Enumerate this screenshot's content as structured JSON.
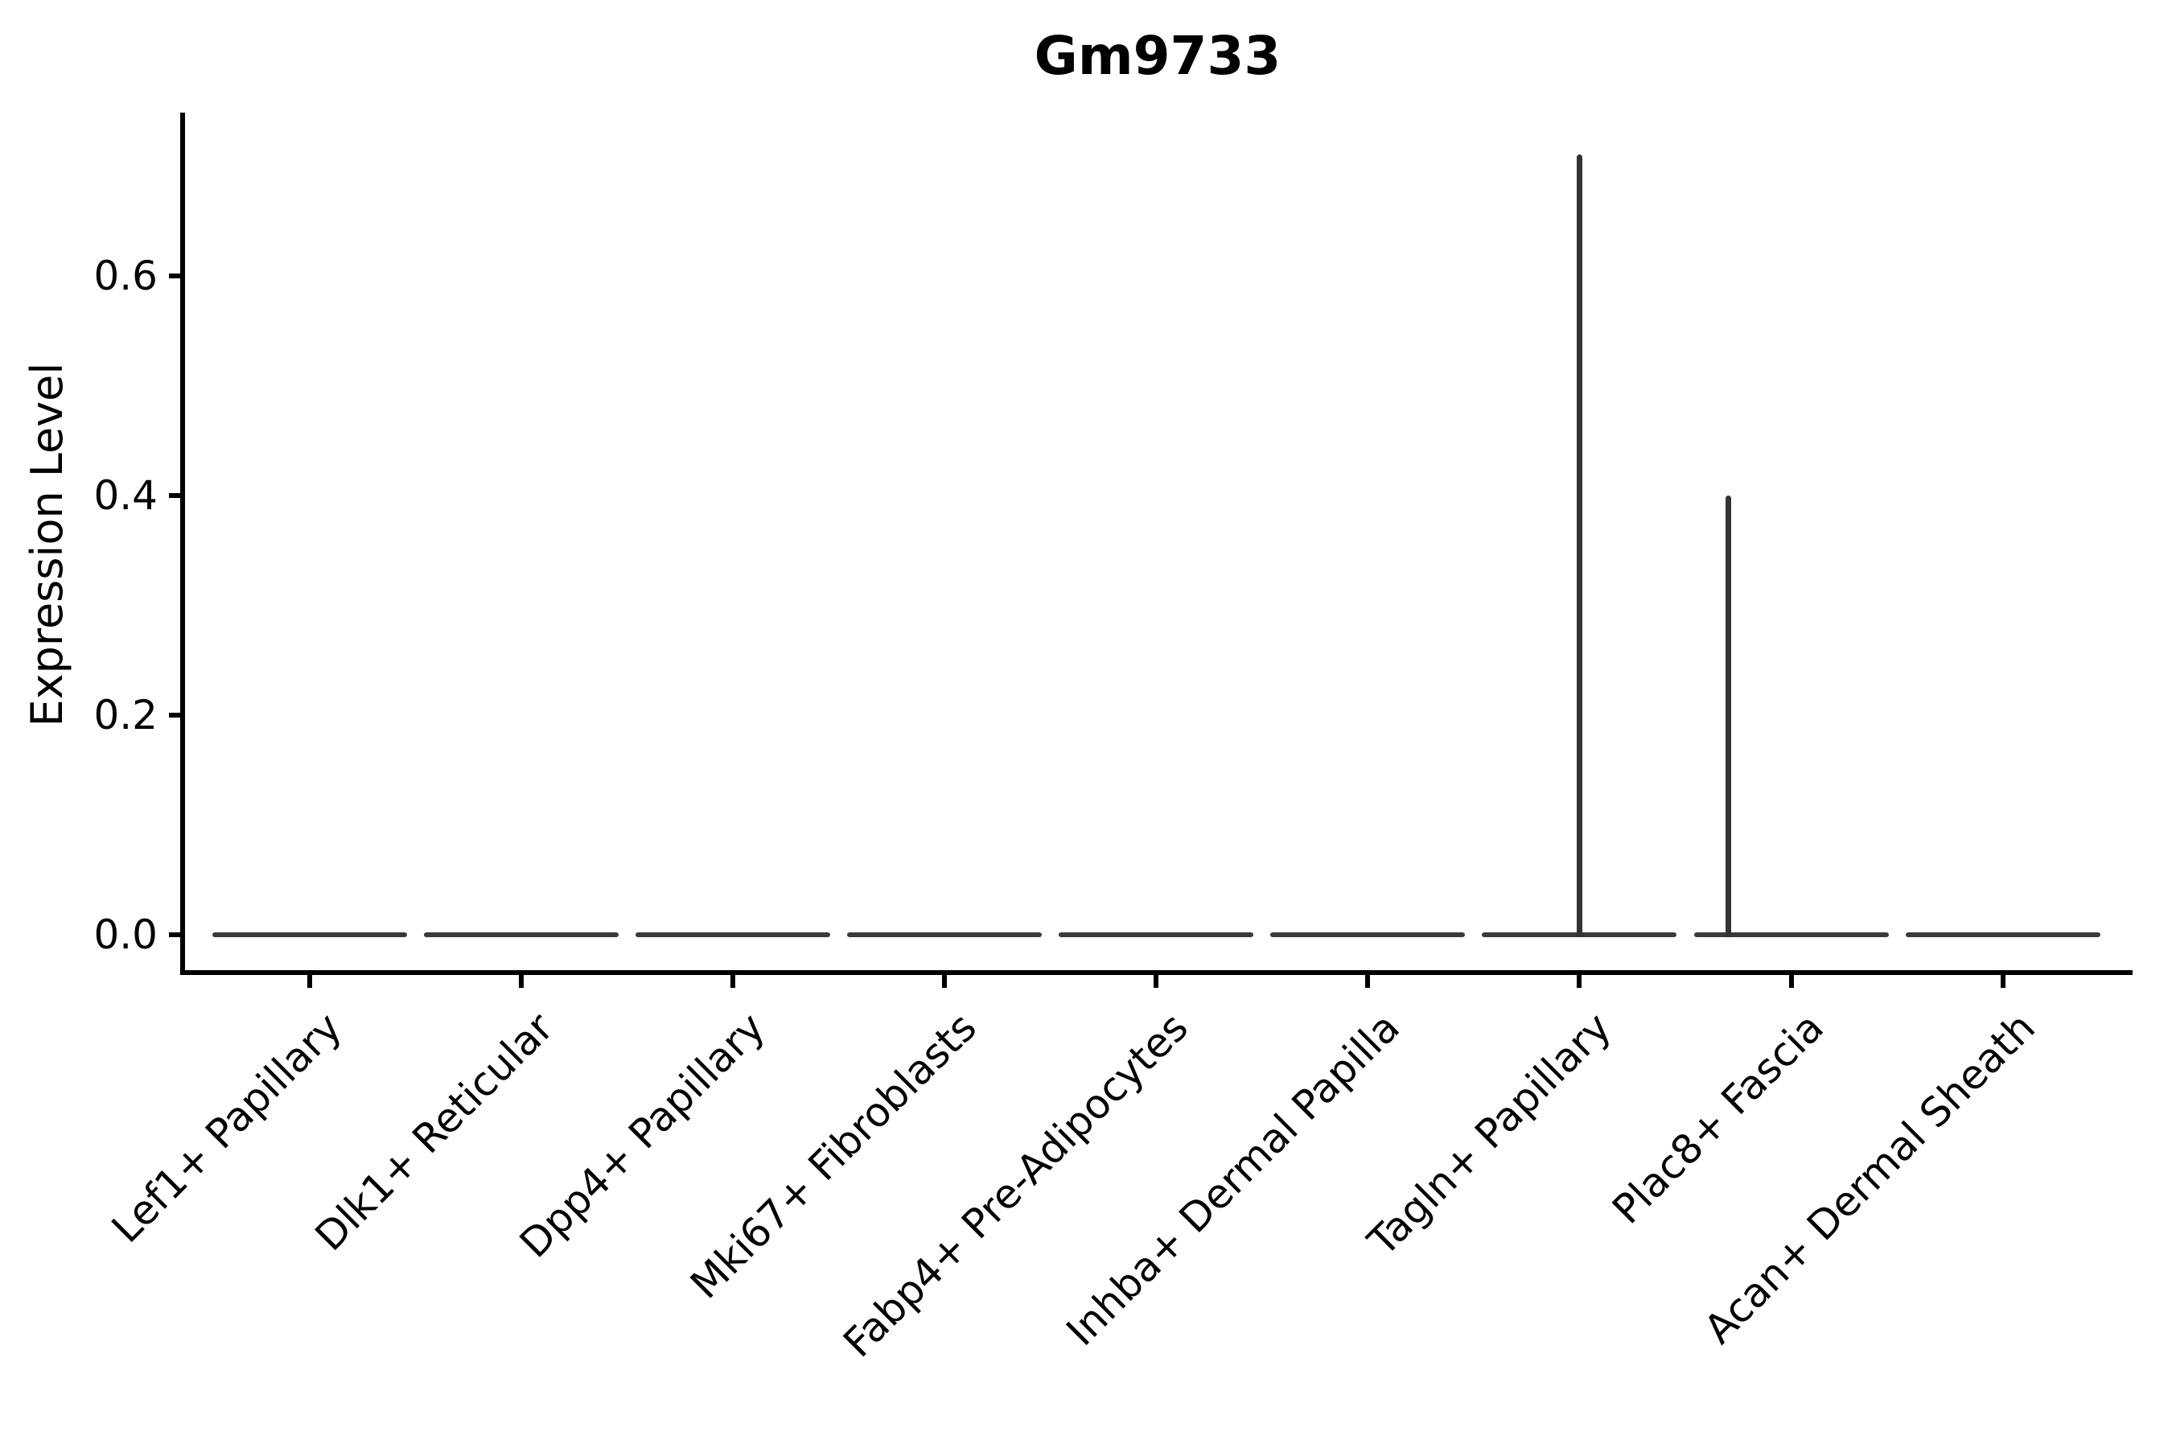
{
  "chart_data": {
    "type": "violin",
    "title": "Gm9733",
    "ylabel": "Expression Level",
    "xlabel": "",
    "ytick_labels": [
      "0.0",
      "0.2",
      "0.4",
      "0.6"
    ],
    "ylim": [
      -0.03,
      0.75
    ],
    "x_tick_rotation": 45,
    "grid": false,
    "legend": null,
    "categories": [
      "Lef1+ Papillary",
      "Dlk1+ Reticular",
      "Dpp4+ Papillary",
      "Mki67+ Fibroblasts",
      "Fabp4+ Pre-Adipocytes",
      "Inhba+ Dermal Papilla",
      "Tagln+ Papillary",
      "Plac8+ Fascia",
      "Acan+ Dermal Sheath"
    ],
    "baseline_value": 0.0,
    "peak_values": [
      0.0,
      0.0,
      0.0,
      0.0,
      0.0,
      0.0,
      0.71,
      0.4,
      0.0
    ],
    "colors": {
      "violin": "#3a3a3a",
      "spike": "#333333",
      "axis": "#000000",
      "text": "#000000",
      "background": "#ffffff"
    }
  }
}
